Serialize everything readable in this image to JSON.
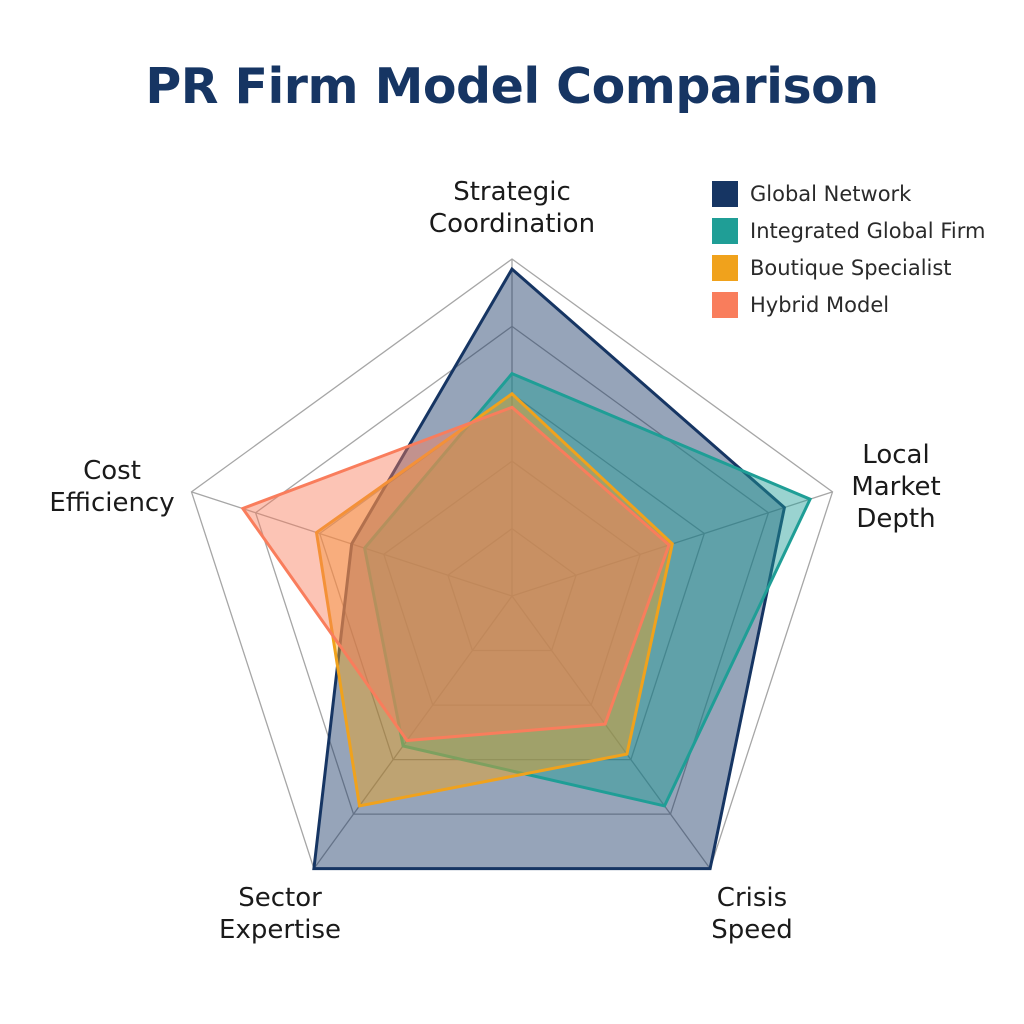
{
  "chart_data": {
    "type": "radar",
    "title": "PR Firm Model Comparison",
    "axes": [
      "Strategic Coordination",
      "Local Market Depth",
      "Crisis Speed",
      "Sector Expertise",
      "Cost Efficiency"
    ],
    "axis_label_lines": [
      [
        "Strategic",
        "Coordination"
      ],
      [
        "Local",
        "Market",
        "Depth"
      ],
      [
        "Crisis",
        "Speed"
      ],
      [
        "Sector",
        "Expertise"
      ],
      [
        "Cost",
        "Efficiency"
      ]
    ],
    "range": [
      0,
      10
    ],
    "rings": 5,
    "legend_position": "top-right",
    "series": [
      {
        "name": "Global Network",
        "values": [
          9.7,
          8.5,
          10,
          10,
          5
        ],
        "color": "#163563"
      },
      {
        "name": "Integrated Global Firm",
        "values": [
          6.6,
          9.3,
          7.7,
          5.5,
          4.6
        ],
        "color": "#1f9e96"
      },
      {
        "name": "Boutique Specialist",
        "values": [
          6.0,
          5.0,
          5.8,
          7.7,
          6.1
        ],
        "color": "#f0a21c"
      },
      {
        "name": "Hybrid Model",
        "values": [
          5.6,
          4.9,
          4.7,
          5.3,
          8.4
        ],
        "color": "#f97d5c"
      }
    ]
  }
}
